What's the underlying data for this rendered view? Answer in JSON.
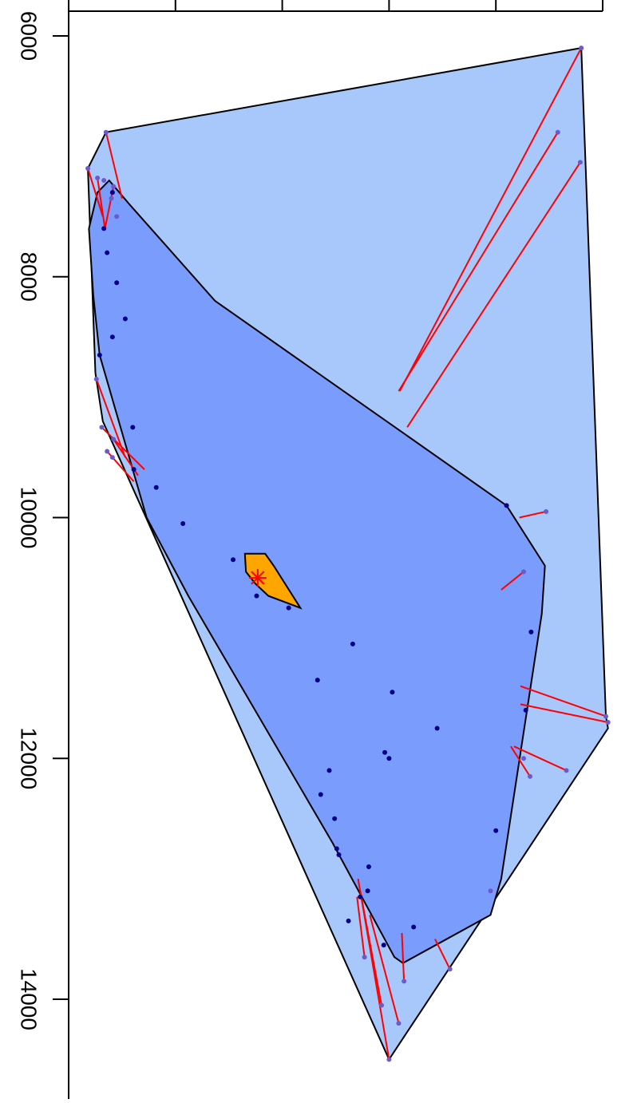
{
  "chart_data": {
    "type": "scatter",
    "title": "",
    "xlabel": "",
    "ylabel": "",
    "orientation": "rotated-90",
    "value_axis": {
      "range": [
        5850,
        14500
      ],
      "ticks": [
        6000,
        8000,
        10000,
        12000,
        14000
      ],
      "tick_labels": [
        "6000",
        "8000",
        "10000",
        "12000",
        "14000"
      ]
    },
    "cross_axis": {
      "range": [
        0,
        6.1
      ],
      "ticks": [
        0,
        1,
        2,
        3,
        4,
        5
      ],
      "tick_labels": []
    },
    "colors": {
      "outer_hull_fill": "#a8c8fc",
      "inner_hull_fill": "#7a9cfc",
      "median_hull_fill": "#ffa500",
      "inside_points": "#00008b",
      "outside_points": "#6a5acd",
      "outlier_lines": "#ff0000",
      "median_marker": "#ff0000",
      "outline": "#000000"
    },
    "outer_hull": [
      [
        6100,
        4.8
      ],
      [
        6800,
        0.35
      ],
      [
        7100,
        0.18
      ],
      [
        8800,
        0.25
      ],
      [
        9200,
        0.32
      ],
      [
        14500,
        3.0
      ],
      [
        11750,
        5.05
      ],
      [
        11650,
        5.03
      ]
    ],
    "inner_hull": [
      [
        7200,
        0.38
      ],
      [
        7400,
        0.57
      ],
      [
        8200,
        1.37
      ],
      [
        9900,
        4.1
      ],
      [
        10400,
        4.46
      ],
      [
        10800,
        4.43
      ],
      [
        13000,
        4.05
      ],
      [
        13300,
        3.95
      ],
      [
        13700,
        3.13
      ],
      [
        13650,
        3.05
      ],
      [
        12700,
        2.47
      ],
      [
        10650,
        1.12
      ],
      [
        10000,
        0.73
      ],
      [
        8650,
        0.29
      ],
      [
        8150,
        0.23
      ],
      [
        7600,
        0.19
      ],
      [
        7300,
        0.27
      ]
    ],
    "median_hull": [
      [
        10300,
        1.65
      ],
      [
        10300,
        1.84
      ],
      [
        10400,
        1.92
      ],
      [
        10750,
        2.17
      ],
      [
        10650,
        1.87
      ],
      [
        10550,
        1.75
      ],
      [
        10450,
        1.66
      ]
    ],
    "median_point": [
      10500,
      1.77
    ],
    "outside_points": [
      [
        6100,
        4.8
      ],
      [
        6800,
        0.35
      ],
      [
        7100,
        0.18
      ],
      [
        7180,
        0.27
      ],
      [
        7250,
        0.42
      ],
      [
        8850,
        0.26
      ],
      [
        9250,
        0.31
      ],
      [
        9350,
        0.42
      ],
      [
        9450,
        0.36
      ],
      [
        9500,
        0.41
      ],
      [
        9950,
        4.47
      ],
      [
        10450,
        4.26
      ],
      [
        11650,
        5.03
      ],
      [
        11700,
        5.05
      ],
      [
        12000,
        4.26
      ],
      [
        12100,
        4.66
      ],
      [
        12150,
        4.32
      ],
      [
        13100,
        3.95
      ],
      [
        13650,
        2.77
      ],
      [
        13750,
        3.57
      ],
      [
        13850,
        3.14
      ],
      [
        14050,
        2.93
      ],
      [
        14200,
        3.09
      ],
      [
        14500,
        3.0
      ],
      [
        6800,
        4.58
      ],
      [
        7050,
        4.79
      ],
      [
        7200,
        0.33
      ],
      [
        7350,
        0.4
      ],
      [
        7500,
        0.45
      ]
    ],
    "inside_points": [
      [
        7300,
        0.41
      ],
      [
        7800,
        0.36
      ],
      [
        8050,
        0.45
      ],
      [
        8350,
        0.53
      ],
      [
        8650,
        0.29
      ],
      [
        9250,
        0.6
      ],
      [
        9600,
        0.61
      ],
      [
        9750,
        0.82
      ],
      [
        10050,
        1.07
      ],
      [
        10350,
        1.54
      ],
      [
        10650,
        1.76
      ],
      [
        10750,
        2.06
      ],
      [
        11050,
        2.66
      ],
      [
        11350,
        2.33
      ],
      [
        11450,
        3.03
      ],
      [
        11600,
        4.28
      ],
      [
        11750,
        3.45
      ],
      [
        11950,
        2.96
      ],
      [
        12000,
        3.0
      ],
      [
        12100,
        2.44
      ],
      [
        12300,
        2.36
      ],
      [
        12500,
        2.49
      ],
      [
        12800,
        2.53
      ],
      [
        12900,
        2.81
      ],
      [
        13100,
        2.8
      ],
      [
        13400,
        3.23
      ],
      [
        13550,
        2.95
      ],
      [
        13350,
        2.62
      ],
      [
        12600,
        4.0
      ],
      [
        9900,
        4.1
      ],
      [
        10950,
        4.33
      ],
      [
        13150,
        2.73
      ],
      [
        12750,
        2.51
      ],
      [
        7600,
        0.33
      ],
      [
        8500,
        0.41
      ]
    ],
    "outlier_lines": [
      [
        [
          6100,
          4.8
        ],
        [
          8950,
          3.1
        ]
      ],
      [
        [
          6800,
          4.58
        ],
        [
          8950,
          3.09
        ]
      ],
      [
        [
          7050,
          4.79
        ],
        [
          9250,
          3.17
        ]
      ],
      [
        [
          6800,
          0.35
        ],
        [
          7350,
          0.5
        ]
      ],
      [
        [
          7100,
          0.18
        ],
        [
          7500,
          0.32
        ]
      ],
      [
        [
          7180,
          0.27
        ],
        [
          7600,
          0.34
        ]
      ],
      [
        [
          7250,
          0.42
        ],
        [
          7600,
          0.34
        ]
      ],
      [
        [
          8850,
          0.26
        ],
        [
          9500,
          0.53
        ]
      ],
      [
        [
          9250,
          0.31
        ],
        [
          9600,
          0.71
        ]
      ],
      [
        [
          9350,
          0.42
        ],
        [
          9650,
          0.65
        ]
      ],
      [
        [
          9450,
          0.36
        ],
        [
          9700,
          0.61
        ]
      ],
      [
        [
          9950,
          4.47
        ],
        [
          10000,
          4.22
        ]
      ],
      [
        [
          10450,
          4.26
        ],
        [
          10600,
          4.05
        ]
      ],
      [
        [
          11650,
          5.03
        ],
        [
          11400,
          4.23
        ]
      ],
      [
        [
          11700,
          5.05
        ],
        [
          11550,
          4.23
        ]
      ],
      [
        [
          12100,
          4.66
        ],
        [
          11900,
          4.17
        ]
      ],
      [
        [
          12150,
          4.32
        ],
        [
          11900,
          4.14
        ]
      ],
      [
        [
          13650,
          2.77
        ],
        [
          13150,
          2.7
        ]
      ],
      [
        [
          13750,
          3.57
        ],
        [
          13500,
          3.43
        ]
      ],
      [
        [
          13850,
          3.14
        ],
        [
          13450,
          3.12
        ]
      ],
      [
        [
          14050,
          2.93
        ],
        [
          13100,
          2.73
        ]
      ],
      [
        [
          14200,
          3.09
        ],
        [
          13300,
          2.82
        ]
      ],
      [
        [
          14500,
          3.0
        ],
        [
          13000,
          2.71
        ]
      ]
    ]
  }
}
